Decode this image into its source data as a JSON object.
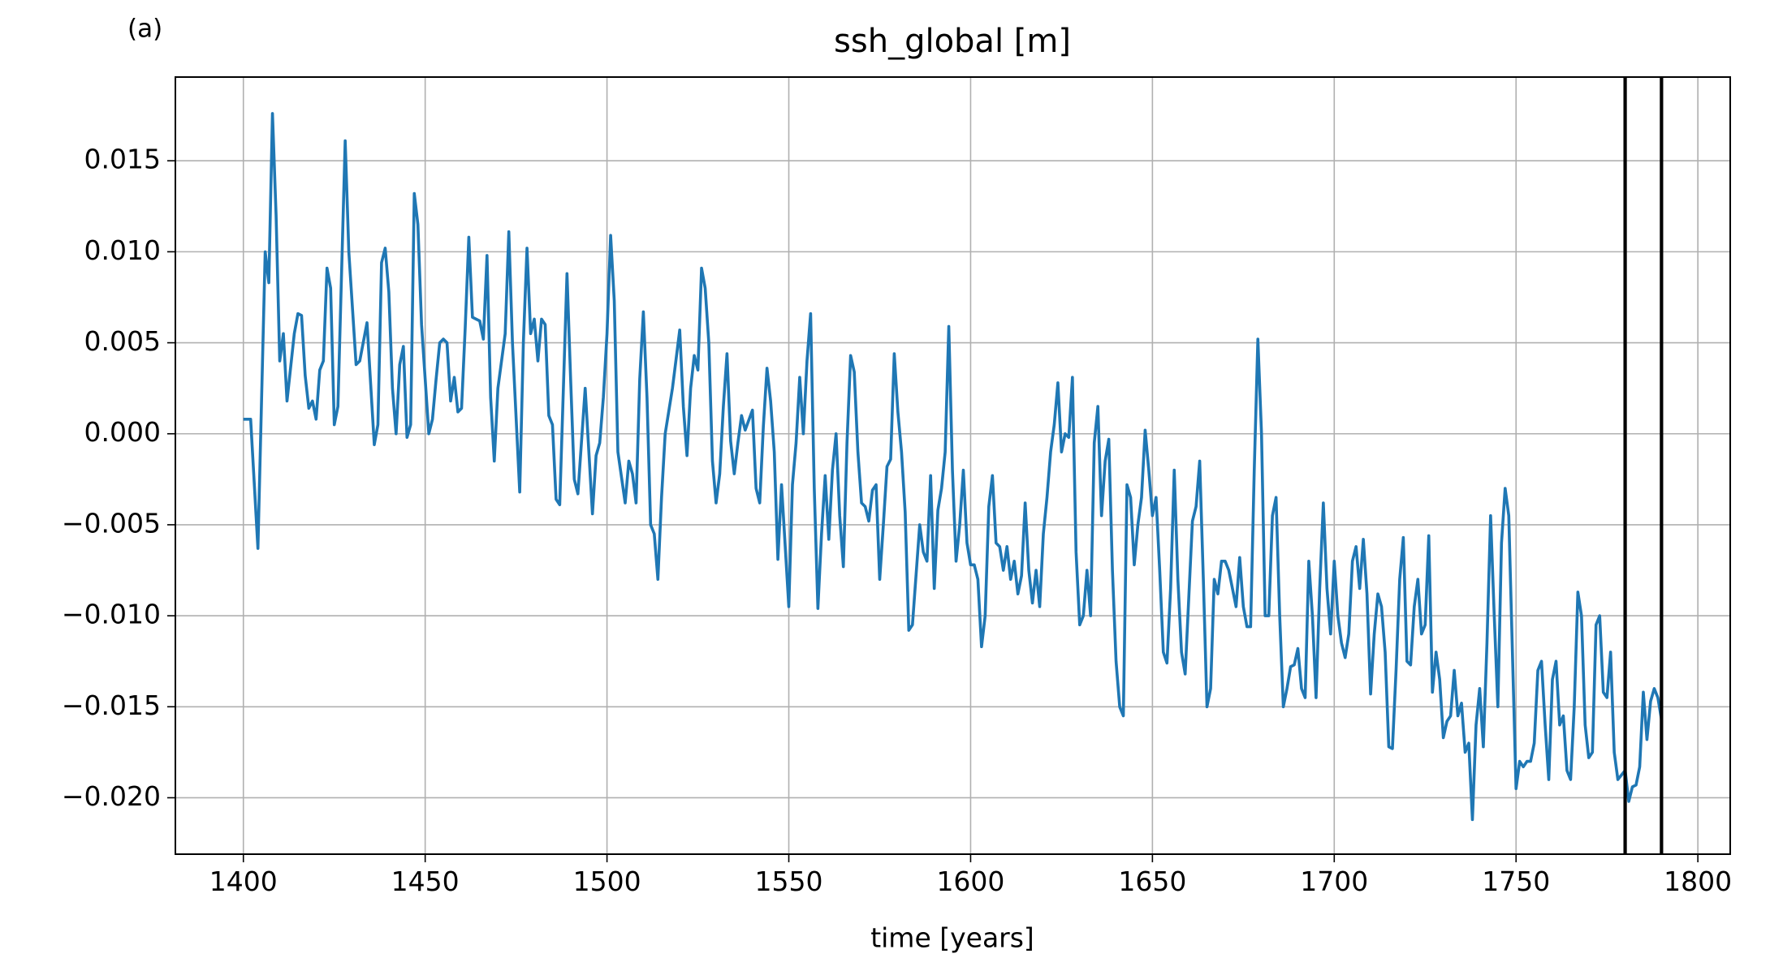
{
  "chart_data": {
    "type": "line",
    "panel_label": "(a)",
    "title": "ssh_global [m]",
    "x_label": "time [years]",
    "color": "#1f77b4",
    "grid": true,
    "xlim": [
      1381.3,
      1808.9
    ],
    "ylim": [
      -0.0231,
      0.0196
    ],
    "xticks": [
      1400,
      1450,
      1500,
      1550,
      1600,
      1650,
      1700,
      1750,
      1800
    ],
    "yticks": [
      {
        "value": -0.02,
        "label": "−0.020"
      },
      {
        "value": -0.015,
        "label": "−0.015"
      },
      {
        "value": -0.01,
        "label": "−0.010"
      },
      {
        "value": -0.005,
        "label": "−0.005"
      },
      {
        "value": 0,
        "label": "0.000"
      },
      0.005,
      {
        "value": 0.01,
        "label": "0.010"
      },
      0.015
    ],
    "vlines": [
      1780,
      1790
    ],
    "vline_color": "#000000",
    "x": [
      1400,
      1402,
      1404,
      1406,
      1407,
      1408,
      1409,
      1410,
      1411,
      1412,
      1414,
      1415,
      1416,
      1417,
      1418,
      1419,
      1420,
      1421,
      1422,
      1423,
      1424,
      1425,
      1426,
      1428,
      1429,
      1431,
      1432,
      1434,
      1436,
      1437,
      1438,
      1439,
      1440,
      1441,
      1442,
      1443,
      1444,
      1445,
      1446,
      1447,
      1448,
      1449,
      1450,
      1451,
      1452,
      1453,
      1454,
      1455,
      1456,
      1457,
      1458,
      1459,
      1460,
      1461,
      1462,
      1463,
      1465,
      1466,
      1467,
      1468,
      1469,
      1470,
      1472,
      1473,
      1474,
      1476,
      1477,
      1478,
      1479,
      1480,
      1481,
      1482,
      1483,
      1484,
      1485,
      1486,
      1487,
      1489,
      1490,
      1491,
      1492,
      1494,
      1496,
      1497,
      1498,
      1499,
      1500,
      1501,
      1502,
      1503,
      1505,
      1506,
      1507,
      1508,
      1509,
      1510,
      1511,
      1512,
      1513,
      1514,
      1515,
      1516,
      1518,
      1520,
      1521,
      1522,
      1523,
      1524,
      1525,
      1526,
      1527,
      1528,
      1529,
      1530,
      1531,
      1532,
      1533,
      1534,
      1535,
      1536,
      1537,
      1538,
      1540,
      1541,
      1542,
      1543,
      1544,
      1545,
      1546,
      1547,
      1548,
      1550,
      1551,
      1552,
      1553,
      1554,
      1555,
      1556,
      1557,
      1558,
      1559,
      1560,
      1561,
      1562,
      1563,
      1564,
      1565,
      1566,
      1567,
      1568,
      1569,
      1570,
      1571,
      1572,
      1573,
      1574,
      1575,
      1576,
      1577,
      1578,
      1579,
      1580,
      1581,
      1582,
      1583,
      1584,
      1586,
      1587,
      1588,
      1589,
      1590,
      1591,
      1592,
      1593,
      1594,
      1595,
      1596,
      1597,
      1598,
      1599,
      1600,
      1601,
      1602,
      1603,
      1604,
      1605,
      1606,
      1607,
      1608,
      1609,
      1610,
      1611,
      1612,
      1613,
      1614,
      1615,
      1616,
      1617,
      1618,
      1619,
      1620,
      1621,
      1622,
      1623,
      1624,
      1625,
      1626,
      1627,
      1628,
      1629,
      1630,
      1631,
      1632,
      1633,
      1634,
      1635,
      1636,
      1637,
      1638,
      1639,
      1640,
      1641,
      1642,
      1643,
      1644,
      1645,
      1646,
      1647,
      1648,
      1649,
      1650,
      1651,
      1652,
      1653,
      1654,
      1655,
      1656,
      1657,
      1658,
      1659,
      1660,
      1661,
      1662,
      1663,
      1664,
      1665,
      1666,
      1667,
      1668,
      1669,
      1670,
      1671,
      1672,
      1673,
      1674,
      1675,
      1676,
      1677,
      1678,
      1679,
      1680,
      1681,
      1682,
      1683,
      1684,
      1685,
      1686,
      1687,
      1688,
      1689,
      1690,
      1691,
      1692,
      1693,
      1694,
      1695,
      1696,
      1697,
      1698,
      1699,
      1700,
      1701,
      1702,
      1703,
      1704,
      1705,
      1706,
      1707,
      1708,
      1709,
      1710,
      1711,
      1712,
      1713,
      1714,
      1715,
      1716,
      1717,
      1718,
      1719,
      1720,
      1721,
      1722,
      1723,
      1724,
      1725,
      1726,
      1727,
      1728,
      1729,
      1730,
      1731,
      1732,
      1733,
      1734,
      1735,
      1736,
      1737,
      1738,
      1739,
      1740,
      1741,
      1742,
      1743,
      1744,
      1745,
      1746,
      1747,
      1748,
      1749,
      1750,
      1751,
      1752,
      1753,
      1754,
      1755,
      1756,
      1757,
      1758,
      1759,
      1760,
      1761,
      1762,
      1763,
      1764,
      1765,
      1766,
      1767,
      1768,
      1769,
      1770,
      1771,
      1772,
      1773,
      1774,
      1775,
      1776,
      1777,
      1778,
      1780,
      1781,
      1782,
      1783,
      1784,
      1785,
      1786,
      1787,
      1788,
      1789,
      1790
    ],
    "values": [
      0.0008,
      0.0008,
      -0.0063,
      0.01,
      0.0083,
      0.0176,
      0.012,
      0.004,
      0.0055,
      0.0018,
      0.0055,
      0.0066,
      0.0065,
      0.0032,
      0.0014,
      0.0018,
      0.0008,
      0.0035,
      0.004,
      0.0091,
      0.008,
      0.0005,
      0.0015,
      0.0161,
      0.01,
      0.0038,
      0.004,
      0.0061,
      -0.0006,
      0.0005,
      0.0094,
      0.0102,
      0.0078,
      0.0025,
      0,
      0.0038,
      0.0048,
      -0.0002,
      0.0005,
      0.0132,
      0.0115,
      0.006,
      0.003,
      0,
      0.0008,
      0.003,
      0.005,
      0.0052,
      0.005,
      0.0018,
      0.0031,
      0.0012,
      0.0014,
      0.0058,
      0.0108,
      0.0064,
      0.0062,
      0.0052,
      0.0098,
      0.002,
      -0.0015,
      0.0025,
      0.0055,
      0.0111,
      0.005,
      -0.0032,
      0.005,
      0.0102,
      0.0055,
      0.0063,
      0.004,
      0.0063,
      0.006,
      0.001,
      0.0005,
      -0.0036,
      -0.0039,
      0.0088,
      0.003,
      -0.0025,
      -0.0033,
      0.0025,
      -0.0044,
      -0.0012,
      -0.0005,
      0.002,
      0.0055,
      0.0109,
      0.0073,
      -0.001,
      -0.0038,
      -0.0015,
      -0.0022,
      -0.0038,
      0.003,
      0.0067,
      0.002,
      -0.005,
      -0.0055,
      -0.008,
      -0.0035,
      0,
      0.0025,
      0.0057,
      0.0015,
      -0.0012,
      0.0025,
      0.0043,
      0.0035,
      0.0091,
      0.008,
      0.005,
      -0.0015,
      -0.0038,
      -0.0022,
      0.0015,
      0.0044,
      -0.0004,
      -0.0022,
      -0.0005,
      0.001,
      0.0002,
      0.0013,
      -0.003,
      -0.0038,
      0.0004,
      0.0036,
      0.0018,
      -0.001,
      -0.0069,
      -0.0028,
      -0.0095,
      -0.0028,
      -0.0005,
      0.0031,
      0,
      0.004,
      0.0066,
      -0.003,
      -0.0096,
      -0.0055,
      -0.0023,
      -0.0058,
      -0.002,
      0,
      -0.0045,
      -0.0073,
      -0.0005,
      0.0043,
      0.0034,
      -0.001,
      -0.0038,
      -0.004,
      -0.0048,
      -0.0031,
      -0.0028,
      -0.008,
      -0.005,
      -0.0018,
      -0.0014,
      0.0044,
      0.0012,
      -0.001,
      -0.0043,
      -0.0108,
      -0.0105,
      -0.005,
      -0.0065,
      -0.007,
      -0.0023,
      -0.0085,
      -0.0042,
      -0.003,
      -0.001,
      0.0059,
      -0.002,
      -0.007,
      -0.005,
      -0.002,
      -0.006,
      -0.0072,
      -0.0072,
      -0.008,
      -0.0117,
      -0.01,
      -0.004,
      -0.0023,
      -0.006,
      -0.0062,
      -0.0075,
      -0.0062,
      -0.008,
      -0.007,
      -0.0088,
      -0.0078,
      -0.0038,
      -0.0075,
      -0.0093,
      -0.0075,
      -0.0095,
      -0.0055,
      -0.0035,
      -0.001,
      0.0005,
      0.0028,
      -0.001,
      0,
      -0.0002,
      0.0031,
      -0.0065,
      -0.0105,
      -0.01,
      -0.0075,
      -0.01,
      -0.0005,
      0.0015,
      -0.0045,
      -0.0015,
      -0.0003,
      -0.0075,
      -0.0125,
      -0.015,
      -0.0155,
      -0.0028,
      -0.0035,
      -0.0072,
      -0.005,
      -0.0035,
      0.0002,
      -0.002,
      -0.0045,
      -0.0035,
      -0.0075,
      -0.012,
      -0.0126,
      -0.0085,
      -0.002,
      -0.008,
      -0.012,
      -0.0132,
      -0.009,
      -0.0048,
      -0.004,
      -0.0015,
      -0.008,
      -0.015,
      -0.014,
      -0.008,
      -0.0088,
      -0.007,
      -0.007,
      -0.0075,
      -0.0085,
      -0.0095,
      -0.0068,
      -0.0095,
      -0.0106,
      -0.0106,
      -0.002,
      0.0052,
      0,
      -0.01,
      -0.01,
      -0.0045,
      -0.0035,
      -0.01,
      -0.015,
      -0.014,
      -0.0128,
      -0.0127,
      -0.0118,
      -0.014,
      -0.0145,
      -0.007,
      -0.01,
      -0.0145,
      -0.0085,
      -0.0038,
      -0.0085,
      -0.011,
      -0.007,
      -0.01,
      -0.0115,
      -0.0123,
      -0.011,
      -0.007,
      -0.0062,
      -0.0085,
      -0.0058,
      -0.0088,
      -0.0143,
      -0.011,
      -0.0088,
      -0.0095,
      -0.012,
      -0.0172,
      -0.0173,
      -0.013,
      -0.008,
      -0.0057,
      -0.0125,
      -0.0127,
      -0.0095,
      -0.008,
      -0.011,
      -0.0105,
      -0.0056,
      -0.0142,
      -0.012,
      -0.0135,
      -0.0167,
      -0.0158,
      -0.0155,
      -0.013,
      -0.0155,
      -0.0148,
      -0.0175,
      -0.017,
      -0.0212,
      -0.016,
      -0.014,
      -0.0172,
      -0.0115,
      -0.0045,
      -0.01,
      -0.015,
      -0.006,
      -0.003,
      -0.0045,
      -0.012,
      -0.0195,
      -0.018,
      -0.0183,
      -0.018,
      -0.018,
      -0.017,
      -0.013,
      -0.0125,
      -0.016,
      -0.019,
      -0.0135,
      -0.0125,
      -0.016,
      -0.0155,
      -0.0185,
      -0.019,
      -0.015,
      -0.0087,
      -0.01,
      -0.016,
      -0.0178,
      -0.0175,
      -0.0105,
      -0.01,
      -0.0142,
      -0.0145,
      -0.012,
      -0.0175,
      -0.019,
      -0.0185,
      -0.0202,
      -0.0194,
      -0.0193,
      -0.0183,
      -0.0142,
      -0.0168,
      -0.0147,
      -0.014,
      -0.0145,
      -0.0157
    ]
  }
}
